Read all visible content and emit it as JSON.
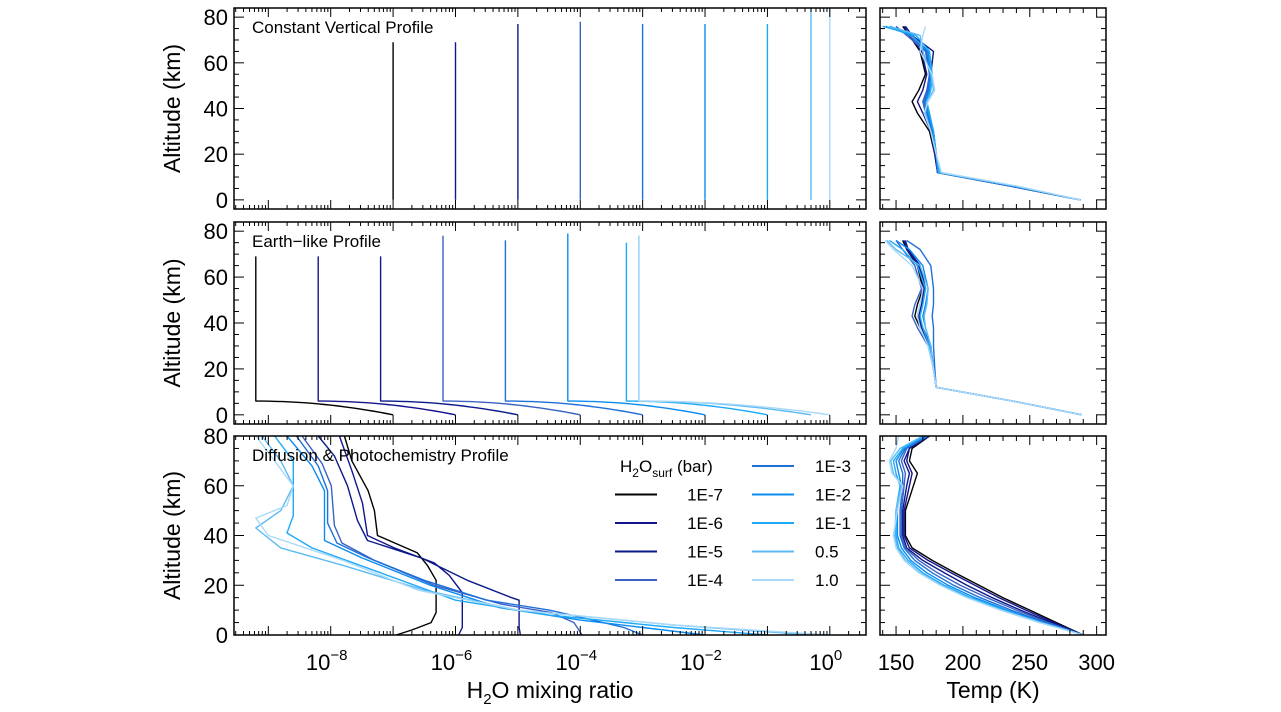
{
  "chart_data": {
    "type": "line",
    "shared": {
      "xlabel": {
        "pre": "H",
        "sub": "2",
        "post": "O mixing ratio"
      },
      "xlabel_right": "Temp (K)",
      "ylabel": "Altitude (km)",
      "x_scale": "log",
      "xlim_log10": [
        -9.55,
        0.58
      ],
      "x_tick_labels": [
        {
          "base": "10",
          "exp": "−8",
          "v": -8
        },
        {
          "base": "10",
          "exp": "−6",
          "v": -6
        },
        {
          "base": "10",
          "exp": "−4",
          "v": -4
        },
        {
          "base": "10",
          "exp": "−2",
          "v": -2
        },
        {
          "base": "10",
          "exp": "0",
          "v": 0
        }
      ],
      "temp_xlim": [
        138,
        307
      ],
      "temp_tick_labels": [
        "150",
        "200",
        "250",
        "300"
      ],
      "y_tick_labels": [
        "0",
        "20",
        "40",
        "60",
        "80"
      ],
      "grid": false
    },
    "legend": {
      "title": {
        "pre": "H",
        "sub": "2",
        "mid": "O",
        "sub2": "surf",
        "post": " (bar)"
      },
      "placement": "right, in bottom-left panel"
    },
    "series": [
      {
        "name": "1E-7",
        "surf": 1e-07,
        "color": "#000000"
      },
      {
        "name": "1E-6",
        "surf": 1e-06,
        "color": "#14148c"
      },
      {
        "name": "1E-5",
        "surf": 1e-05,
        "color": "#0a1a88"
      },
      {
        "name": "1E-4",
        "surf": 0.0001,
        "color": "#3c62c4"
      },
      {
        "name": "1E-3",
        "surf": 0.001,
        "color": "#1f6fd8"
      },
      {
        "name": "1E-2",
        "surf": 0.01,
        "color": "#0a8cf0"
      },
      {
        "name": "1E-1",
        "surf": 0.1,
        "color": "#1eaaf8"
      },
      {
        "name": "0.5",
        "surf": 0.5,
        "color": "#5cbaf5"
      },
      {
        "name": "1.0",
        "surf": 1.0,
        "color": "#a9d9f8"
      }
    ],
    "panels": [
      {
        "title": "Constant Vertical Profile",
        "ylim": [
          -4,
          84
        ],
        "mixing": {
          "kind": "constant",
          "top_alt_km": [
            69,
            69,
            77,
            78,
            77,
            77,
            77,
            84,
            84
          ]
        },
        "temp_alt_km": [
          0,
          6,
          12,
          20,
          30,
          38,
          43,
          48,
          55,
          65,
          72,
          76
        ],
        "temps": [
          [
            288,
            236,
            181,
            179,
            175,
            166,
            162,
            167,
            172,
            168,
            160,
            155
          ],
          [
            288,
            236,
            181,
            179,
            176,
            170,
            166,
            170,
            173,
            169,
            160,
            156
          ],
          [
            288,
            236,
            181,
            180,
            178,
            174,
            172,
            174,
            176,
            178,
            162,
            157
          ],
          [
            288,
            236,
            181,
            180,
            177,
            172,
            170,
            173,
            175,
            172,
            158,
            150
          ],
          [
            288,
            237,
            181,
            180,
            177,
            173,
            171,
            174,
            175,
            173,
            160,
            146
          ],
          [
            288,
            238,
            182,
            180,
            178,
            174,
            172,
            175,
            176,
            174,
            162,
            142
          ],
          [
            288,
            239,
            182,
            180,
            178,
            175,
            173,
            176,
            177,
            175,
            165,
            140
          ],
          [
            288,
            240,
            183,
            180,
            176,
            172,
            173,
            178,
            176,
            170,
            168,
            145
          ],
          [
            288,
            241,
            184,
            180,
            176,
            171,
            174,
            179,
            177,
            168,
            170,
            172
          ]
        ]
      },
      {
        "title": "Earth−like Profile",
        "ylim": [
          -4,
          84
        ],
        "mixing": {
          "kind": "earth-like",
          "tropopause_alt_km": 6,
          "strat_log10": [
            -9.2,
            -8.2,
            -7.2,
            -6.2,
            -5.2,
            -4.2,
            -3.26,
            -3.06,
            -3.06
          ],
          "top_alt_km": [
            69,
            69,
            69,
            78,
            76,
            79,
            75,
            78,
            78
          ]
        },
        "temp_alt_km": [
          0,
          6,
          12,
          20,
          30,
          38,
          43,
          48,
          55,
          65,
          72,
          76
        ],
        "temps": [
          [
            289,
            237,
            180,
            178,
            175,
            168,
            164,
            166,
            170,
            166,
            158,
            155
          ],
          [
            289,
            237,
            180,
            178,
            175,
            169,
            166,
            168,
            171,
            167,
            158,
            156
          ],
          [
            289,
            237,
            180,
            178,
            176,
            170,
            167,
            169,
            172,
            168,
            159,
            157
          ],
          [
            289,
            237,
            180,
            178,
            174,
            166,
            162,
            164,
            169,
            164,
            155,
            150
          ],
          [
            289,
            237,
            180,
            179,
            178,
            178,
            177,
            178,
            178,
            176,
            168,
            158
          ],
          [
            289,
            237,
            180,
            178,
            176,
            172,
            170,
            172,
            174,
            170,
            160,
            150
          ],
          [
            289,
            237,
            180,
            178,
            175,
            170,
            168,
            170,
            172,
            166,
            155,
            145
          ],
          [
            289,
            237,
            180,
            178,
            176,
            172,
            171,
            173,
            174,
            168,
            150,
            143
          ],
          [
            289,
            237,
            180,
            178,
            174,
            168,
            166,
            168,
            170,
            162,
            148,
            142
          ]
        ]
      },
      {
        "title": "Diffusion & Photochemistry Profile",
        "ylim": [
          0,
          80
        ],
        "mixing": {
          "kind": "profile",
          "profiles_log10_alt": [
            [
              [
                -6.95,
                0
              ],
              [
                -6.7,
                2
              ],
              [
                -6.39,
                5
              ],
              [
                -6.31,
                9
              ],
              [
                -6.31,
                22
              ],
              [
                -6.45,
                28
              ],
              [
                -6.61,
                33
              ],
              [
                -7.25,
                40
              ],
              [
                -7.3,
                50
              ],
              [
                -7.4,
                58
              ],
              [
                -7.66,
                70
              ],
              [
                -7.78,
                80
              ]
            ],
            [
              [
                -5.95,
                0
              ],
              [
                -5.89,
                3
              ],
              [
                -5.89,
                17
              ],
              [
                -6.1,
                24
              ],
              [
                -6.34,
                29
              ],
              [
                -6.98,
                35
              ],
              [
                -7.41,
                40
              ],
              [
                -7.49,
                53
              ],
              [
                -7.66,
                66
              ],
              [
                -7.86,
                80
              ]
            ],
            [
              [
                -4.96,
                0
              ],
              [
                -4.98,
                3
              ],
              [
                -4.98,
                14
              ],
              [
                -5.1,
                15
              ],
              [
                -5.81,
                22
              ],
              [
                -6.55,
                31
              ],
              [
                -7.41,
                38
              ],
              [
                -7.57,
                46
              ],
              [
                -7.73,
                60
              ],
              [
                -7.94,
                72
              ],
              [
                -8.2,
                80
              ]
            ],
            [
              [
                -3.97,
                0
              ],
              [
                -4.1,
                5
              ],
              [
                -4.46,
                9
              ],
              [
                -5.26,
                12.4
              ],
              [
                -6.34,
                20
              ],
              [
                -7.3,
                30
              ],
              [
                -7.82,
                37
              ],
              [
                -7.94,
                44
              ],
              [
                -7.99,
                60
              ],
              [
                -8.14,
                69
              ],
              [
                -8.46,
                80
              ]
            ],
            [
              [
                -3.0,
                0
              ],
              [
                -3.3,
                3
              ],
              [
                -3.8,
                6
              ],
              [
                -4.5,
                10
              ],
              [
                -5.5,
                14
              ],
              [
                -6.5,
                22
              ],
              [
                -7.4,
                31
              ],
              [
                -7.9,
                37
              ],
              [
                -8.05,
                45
              ],
              [
                -8.05,
                58
              ],
              [
                -8.2,
                68
              ],
              [
                -8.55,
                80
              ]
            ],
            [
              [
                -2.0,
                0
              ],
              [
                -3.0,
                3
              ],
              [
                -4.0,
                6
              ],
              [
                -5.3,
                11
              ],
              [
                -6.4,
                20
              ],
              [
                -7.5,
                31
              ],
              [
                -8.1,
                38
              ],
              [
                -8.1,
                46
              ],
              [
                -8.1,
                58
              ],
              [
                -8.3,
                68
              ],
              [
                -8.7,
                80
              ]
            ],
            [
              [
                -1.0,
                0
              ],
              [
                -2.5,
                3
              ],
              [
                -4.5,
                8
              ],
              [
                -6.0,
                14
              ],
              [
                -7.2,
                25
              ],
              [
                -8.3,
                35
              ],
              [
                -8.7,
                41
              ],
              [
                -8.6,
                48
              ],
              [
                -8.6,
                58
              ],
              [
                -8.6,
                70
              ],
              [
                -8.9,
                80
              ]
            ],
            [
              [
                -0.3,
                0
              ],
              [
                -2.5,
                4
              ],
              [
                -5.0,
                10
              ],
              [
                -6.5,
                18
              ],
              [
                -7.8,
                28
              ],
              [
                -8.8,
                35
              ],
              [
                -9.2,
                43
              ],
              [
                -8.8,
                50
              ],
              [
                -8.6,
                60
              ],
              [
                -8.8,
                70
              ],
              [
                -9.1,
                80
              ]
            ],
            [
              [
                0,
                0
              ],
              [
                -2.5,
                4
              ],
              [
                -5.0,
                10
              ],
              [
                -6.6,
                18
              ],
              [
                -7.8,
                30
              ],
              [
                -9.0,
                40
              ],
              [
                -9.2,
                47
              ],
              [
                -8.7,
                52
              ],
              [
                -8.6,
                60
              ],
              [
                -8.9,
                70
              ],
              [
                -9.2,
                80
              ]
            ]
          ]
        },
        "temp_alt_km": [
          0,
          5,
          10,
          15,
          20,
          25,
          30,
          35,
          40,
          50,
          60,
          65,
          70,
          75,
          80
        ],
        "temps": [
          [
            290,
            270,
            250,
            230,
            212,
            194,
            177,
            162,
            157,
            157,
            163,
            166,
            160,
            162,
            175
          ],
          [
            290,
            268,
            247,
            227,
            209,
            191,
            174,
            160,
            156,
            156,
            160,
            162,
            158,
            160,
            175
          ],
          [
            290,
            266,
            243,
            222,
            203,
            186,
            170,
            158,
            155,
            155,
            158,
            160,
            156,
            160,
            175
          ],
          [
            290,
            264,
            240,
            218,
            198,
            181,
            167,
            157,
            154,
            154,
            156,
            157,
            154,
            158,
            174
          ],
          [
            290,
            262,
            236,
            213,
            193,
            177,
            164,
            156,
            153,
            153,
            155,
            155,
            152,
            157,
            173
          ],
          [
            290,
            260,
            233,
            209,
            189,
            173,
            161,
            154,
            151,
            151,
            154,
            152,
            150,
            156,
            172
          ],
          [
            290,
            259,
            231,
            206,
            186,
            170,
            159,
            152,
            150,
            150,
            153,
            150,
            148,
            155,
            171
          ],
          [
            290,
            258,
            229,
            204,
            184,
            168,
            157,
            151,
            149,
            150,
            154,
            148,
            146,
            153,
            170
          ],
          [
            290,
            257,
            228,
            203,
            183,
            167,
            156,
            150,
            148,
            151,
            155,
            147,
            145,
            150,
            152
          ]
        ]
      }
    ]
  }
}
